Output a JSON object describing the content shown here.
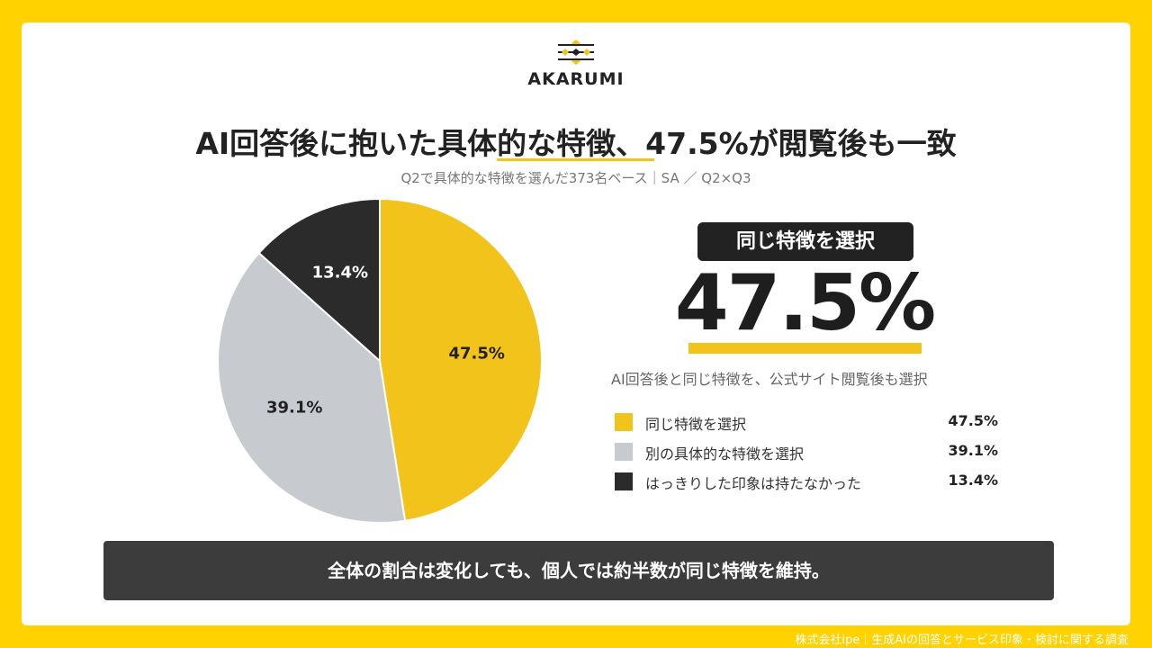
{
  "brand": {
    "name": "AKARUMI",
    "icon": "diamond-lines-logo-icon"
  },
  "header": {
    "title": "AI回答後に抱いた具体的な特徴、47.5%が閲覧後も一致",
    "subtitle": "Q2で具体的な特徴を選んだ373名ベース｜SA ／ Q2×Q3"
  },
  "highlight": {
    "badge": "同じ特徴を選択",
    "value": "47.5%",
    "description": "AI回答後と同じ特徴を、公式サイト閲覧後も選択"
  },
  "chart_data": {
    "type": "pie",
    "title": "",
    "slices": [
      {
        "label": "同じ特徴を選択",
        "value": 47.5,
        "display": "47.5%",
        "color": "#F2C31A",
        "text_color": "#222222"
      },
      {
        "label": "別の具体的な特徴を選択",
        "value": 39.1,
        "display": "39.1%",
        "color": "#C7CACE",
        "text_color": "#222222"
      },
      {
        "label": "はっきりした印象は持たなかった",
        "value": 13.4,
        "display": "13.4%",
        "color": "#2B2B2B",
        "text_color": "#FFFFFF"
      }
    ],
    "start": "12 o'clock",
    "direction": "clockwise",
    "legend_position": "right"
  },
  "summary": "全体の割合は変化しても、個人では約半数が同じ特徴を維持。",
  "footer": "株式会社ipe｜生成AIの回答とサービス印象・検討に関する調査",
  "colors": {
    "page_bg": "#FFD200",
    "accent": "#F2C31A",
    "dark": "#222222"
  }
}
